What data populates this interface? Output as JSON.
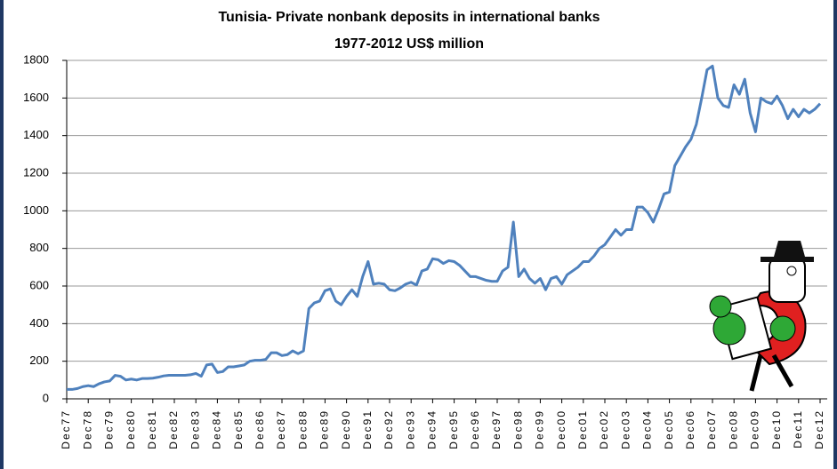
{
  "chart_data": {
    "type": "line",
    "title": "Tunisia- Private nonbank deposits in international banks",
    "subtitle": "1977-2012 US$ million",
    "categories": [
      "Dec77",
      null,
      null,
      null,
      "Dec78",
      null,
      null,
      null,
      "Dec79",
      null,
      null,
      null,
      "Dec80",
      null,
      null,
      null,
      "Dec81",
      null,
      null,
      null,
      "Dec82",
      null,
      null,
      null,
      "Dec83",
      null,
      null,
      null,
      "Dec84",
      null,
      null,
      null,
      "Dec85",
      null,
      null,
      null,
      "Dec86",
      null,
      null,
      null,
      "Dec87",
      null,
      null,
      null,
      "Dec88",
      null,
      null,
      null,
      "Dec89",
      null,
      null,
      null,
      "Dec90",
      null,
      null,
      null,
      "Dec91",
      null,
      null,
      null,
      "Dec92",
      null,
      null,
      null,
      "Dec93",
      null,
      null,
      null,
      "Dec94",
      null,
      null,
      null,
      "Dec95",
      null,
      null,
      null,
      "Dec96",
      null,
      null,
      null,
      "Dec97",
      null,
      null,
      null,
      "Dec98",
      null,
      null,
      null,
      "Dec99",
      null,
      null,
      null,
      "Dec00",
      null,
      null,
      null,
      "Dec01",
      null,
      null,
      null,
      "Dec02",
      null,
      null,
      null,
      "Dec03",
      null,
      null,
      null,
      "Dec04",
      null,
      null,
      null,
      "Dec05",
      null,
      null,
      null,
      "Dec06",
      null,
      null,
      null,
      "Dec07",
      null,
      null,
      null,
      "Dec08",
      null,
      null,
      null,
      "Dec09",
      null,
      null,
      null,
      "Dec10",
      null,
      null,
      null,
      "Dec11",
      null,
      null,
      null,
      "Dec12"
    ],
    "values": [
      50,
      50,
      55,
      65,
      70,
      65,
      80,
      90,
      95,
      125,
      120,
      100,
      105,
      100,
      108,
      108,
      110,
      115,
      122,
      125,
      125,
      125,
      125,
      128,
      135,
      120,
      180,
      185,
      140,
      145,
      170,
      170,
      175,
      180,
      200,
      205,
      205,
      210,
      245,
      245,
      230,
      235,
      255,
      240,
      255,
      480,
      510,
      520,
      575,
      585,
      520,
      500,
      545,
      580,
      545,
      650,
      730,
      610,
      615,
      610,
      580,
      575,
      590,
      610,
      620,
      605,
      680,
      690,
      745,
      740,
      720,
      735,
      730,
      710,
      680,
      650,
      650,
      640,
      630,
      625,
      625,
      680,
      700,
      940,
      650,
      690,
      640,
      615,
      640,
      580,
      640,
      650,
      610,
      660,
      680,
      700,
      730,
      730,
      760,
      800,
      820,
      860,
      900,
      870,
      900,
      900,
      1020,
      1020,
      990,
      940,
      1010,
      1090,
      1100,
      1240,
      1290,
      1340,
      1380,
      1460,
      1600,
      1750,
      1770,
      1600,
      1560,
      1550,
      1670,
      1620,
      1700,
      1520,
      1420,
      1600,
      1580,
      1570,
      1610,
      1560,
      1490,
      1540,
      1500,
      1540,
      1520,
      1540,
      1570
    ],
    "color": "#4f81bd",
    "ylim": [
      0,
      1800
    ],
    "yticks": [
      0,
      200,
      400,
      600,
      800,
      1000,
      1200,
      1400,
      1600,
      1800
    ],
    "grid": true
  }
}
